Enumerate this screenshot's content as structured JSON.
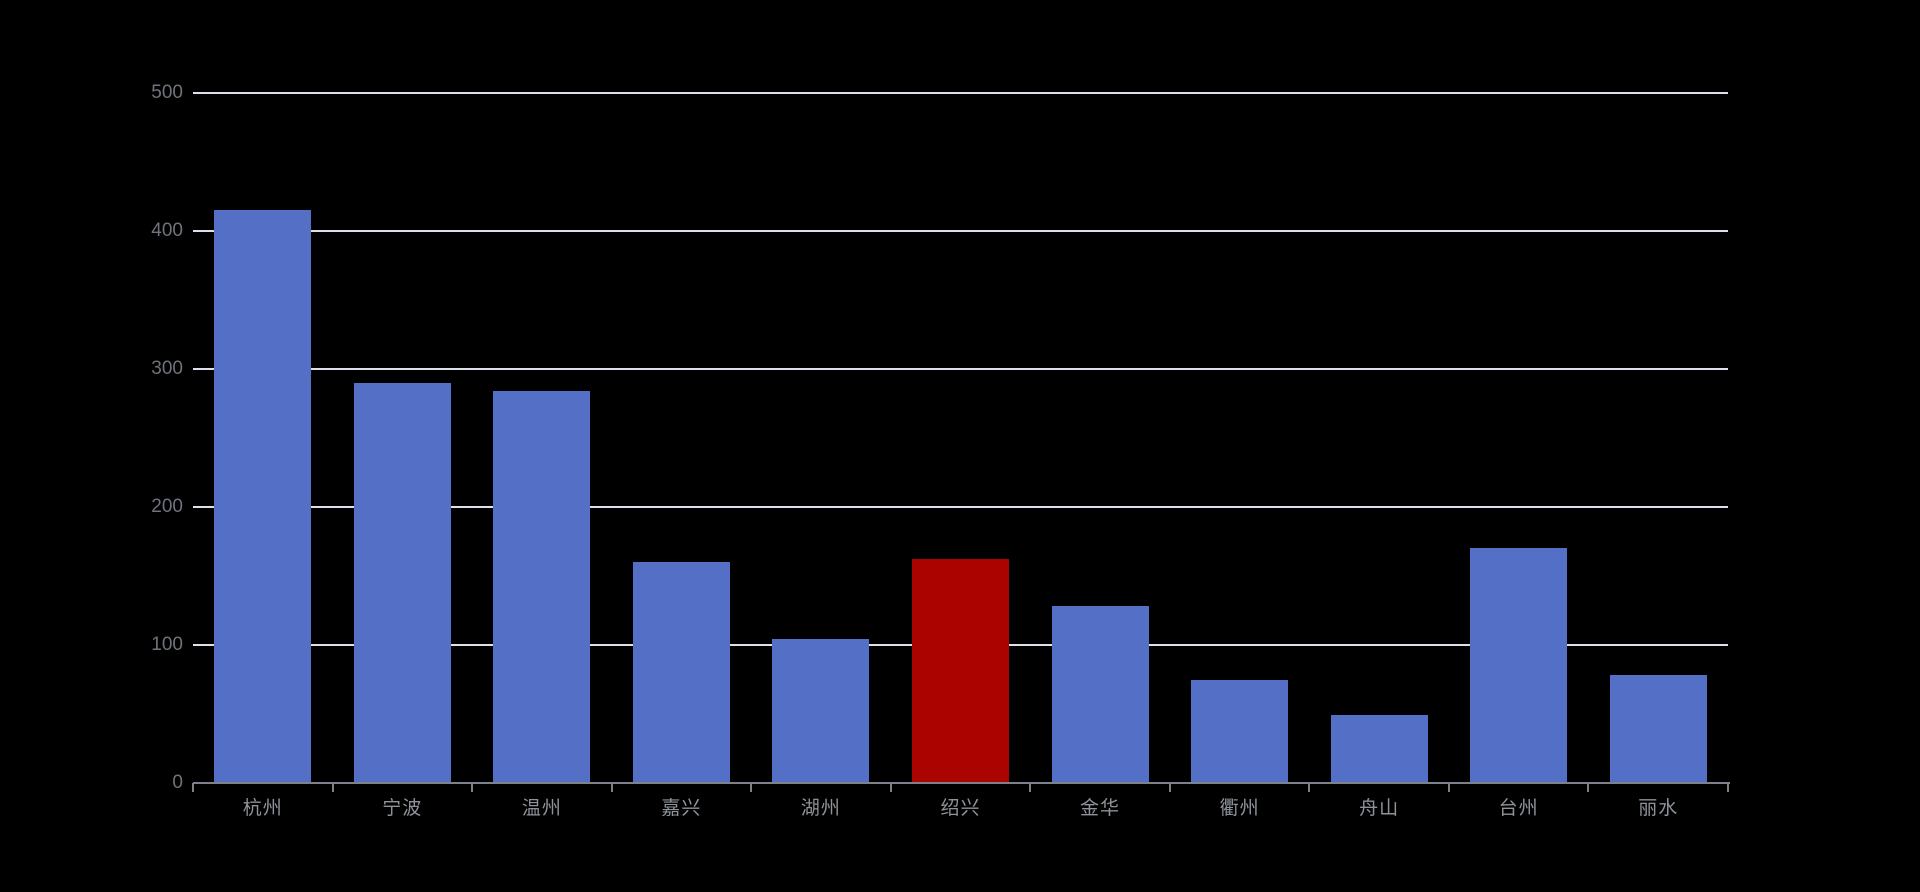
{
  "page": {
    "background_color": "#000000"
  },
  "chart_data": {
    "type": "bar",
    "title": "",
    "xlabel": "",
    "ylabel": "",
    "categories": [
      "杭州",
      "宁波",
      "温州",
      "嘉兴",
      "湖州",
      "绍兴",
      "金华",
      "衢州",
      "舟山",
      "台州",
      "丽水"
    ],
    "values": [
      415,
      290,
      284,
      160,
      104,
      162,
      128,
      75,
      49,
      170,
      78
    ],
    "highlight_index": 5,
    "highlight_category": "绍兴",
    "ylim": [
      0,
      500
    ],
    "yticks": [
      0,
      100,
      200,
      300,
      400,
      500
    ],
    "grid": true,
    "legend": false,
    "colors": {
      "bar": "#5470c6",
      "highlight_bar": "#aa0300",
      "gridline": "#dde1ec",
      "axis_line": "#7d828a",
      "x_label": "#8e939a",
      "y_label": "#6e737c"
    }
  }
}
